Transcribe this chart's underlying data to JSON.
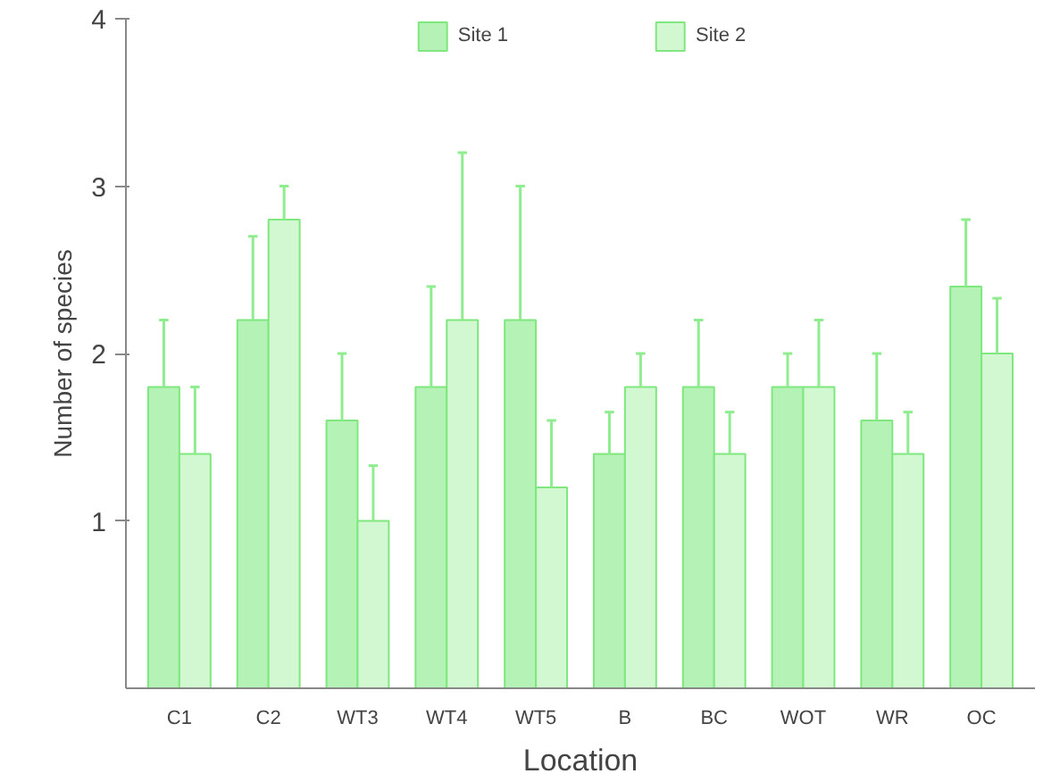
{
  "chart_data": {
    "type": "bar",
    "xlabel": "Location",
    "ylabel": "Number of species",
    "categories": [
      "C1",
      "C2",
      "WT3",
      "WT4",
      "WT5",
      "B",
      "BC",
      "WOT",
      "WR",
      "OC"
    ],
    "series": [
      {
        "name": "Site 1",
        "color": "#b5f2b5",
        "values": [
          1.8,
          2.2,
          1.6,
          1.8,
          2.2,
          1.4,
          1.8,
          1.8,
          1.6,
          2.4
        ],
        "errors": [
          [
            1.8,
            2.2
          ],
          [
            2.2,
            2.7
          ],
          [
            1.6,
            2.0
          ],
          [
            1.8,
            2.4
          ],
          [
            2.2,
            3.0
          ],
          [
            1.4,
            1.65
          ],
          [
            1.8,
            2.2
          ],
          [
            1.8,
            2.0
          ],
          [
            1.6,
            2.0
          ],
          [
            2.4,
            2.8
          ]
        ]
      },
      {
        "name": "Site 2",
        "color": "#d2f8d2",
        "values": [
          1.4,
          2.8,
          1.0,
          2.2,
          1.2,
          1.8,
          1.4,
          1.8,
          1.4,
          2.0
        ],
        "errors": [
          [
            1.4,
            1.8
          ],
          [
            2.8,
            3.0
          ],
          [
            1.0,
            1.33
          ],
          [
            2.2,
            3.2
          ],
          [
            1.2,
            1.6
          ],
          [
            1.8,
            2.0
          ],
          [
            1.4,
            1.65
          ],
          [
            1.8,
            2.2
          ],
          [
            1.4,
            1.65
          ],
          [
            2.0,
            2.33
          ]
        ]
      }
    ],
    "ylim": [
      0,
      4
    ],
    "yticks": [
      1,
      2,
      3,
      4
    ],
    "grid": false,
    "legend": "top"
  }
}
